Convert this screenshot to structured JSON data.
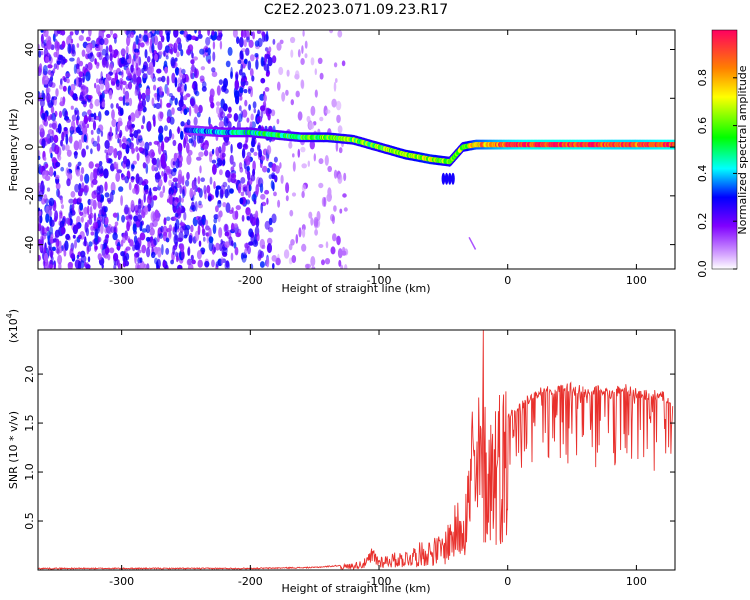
{
  "title": "C2E2.2023.071.09.23.R17",
  "chart_data": [
    {
      "type": "heatmap",
      "xlabel": "Height of straight line (km)",
      "ylabel": "Frequency (Hz)",
      "xlim": [
        -365,
        130
      ],
      "ylim": [
        -50,
        48
      ],
      "xticks": [
        -300,
        -200,
        -100,
        0,
        100
      ],
      "yticks": [
        -40,
        -20,
        0,
        20,
        40
      ],
      "grid": false,
      "colorbar": {
        "label": "Normalized spectral amplitude",
        "range": [
          0,
          1
        ],
        "ticks": [
          "0.0",
          "0.2",
          "0.4",
          "0.6",
          "0.8"
        ],
        "tick_values": [
          0,
          0.2,
          0.4,
          0.6,
          0.8
        ],
        "colormap": "rainbow (white-violet-blue-cyan-green-yellow-orange-red)"
      },
      "noise_region_x": [
        -365,
        -140
      ],
      "ridge": {
        "x": [
          -250,
          -220,
          -200,
          -180,
          -160,
          -140,
          -120,
          -100,
          -80,
          -60,
          -45,
          -35,
          -25,
          -10,
          0,
          20,
          50,
          80,
          100,
          130
        ],
        "frequency": [
          7,
          6,
          6,
          5,
          4,
          4,
          3,
          0,
          -3,
          -5,
          -6,
          0,
          1,
          1,
          1,
          1,
          1,
          1,
          1,
          1
        ],
        "amplitude": [
          0.3,
          0.4,
          0.45,
          0.5,
          0.55,
          0.6,
          0.6,
          0.6,
          0.65,
          0.7,
          0.6,
          0.6,
          0.75,
          0.85,
          0.9,
          0.95,
          0.95,
          0.9,
          0.9,
          0.95
        ]
      }
    },
    {
      "type": "line",
      "xlabel": "Height of straight line (km)",
      "ylabel": "SNR (10 * v/v)",
      "y_multiplier": "(x10⁴)",
      "y_multiplier_base": "(x10",
      "y_multiplier_exp": "4",
      "y_multiplier_close": ")",
      "xlim": [
        -365,
        130
      ],
      "ylim": [
        0,
        2.45
      ],
      "xticks": [
        -300,
        -200,
        -100,
        0,
        100
      ],
      "yticks": [
        0.5,
        1.0,
        1.5,
        2.0
      ],
      "ytick_labels": [
        "0.5",
        "1.0",
        "1.5",
        "2.0"
      ],
      "color": "#e8302c",
      "grid": false,
      "series": [
        {
          "x": [
            -365,
            -300,
            -200,
            -150,
            -130,
            -120,
            -110,
            -105,
            -100,
            -90,
            -80,
            -70,
            -60,
            -50,
            -45,
            -40,
            -35,
            -30,
            -28,
            -25,
            -22,
            -20,
            -18,
            -15,
            -10,
            -5,
            0,
            10,
            20,
            30,
            40,
            50,
            60,
            70,
            80,
            90,
            100,
            110,
            120,
            128
          ],
          "y": [
            0.01,
            0.01,
            0.01,
            0.02,
            0.04,
            0.06,
            0.1,
            0.2,
            0.12,
            0.14,
            0.16,
            0.22,
            0.26,
            0.3,
            0.45,
            0.55,
            0.75,
            0.95,
            1.6,
            1.1,
            1.55,
            1.35,
            1.45,
            1.3,
            1.5,
            1.55,
            1.6,
            1.72,
            1.85,
            1.9,
            1.9,
            1.92,
            1.88,
            1.9,
            1.85,
            1.92,
            1.86,
            1.84,
            1.84,
            1.7
          ]
        }
      ],
      "peak": {
        "x": -19,
        "y": 2.45
      }
    }
  ]
}
